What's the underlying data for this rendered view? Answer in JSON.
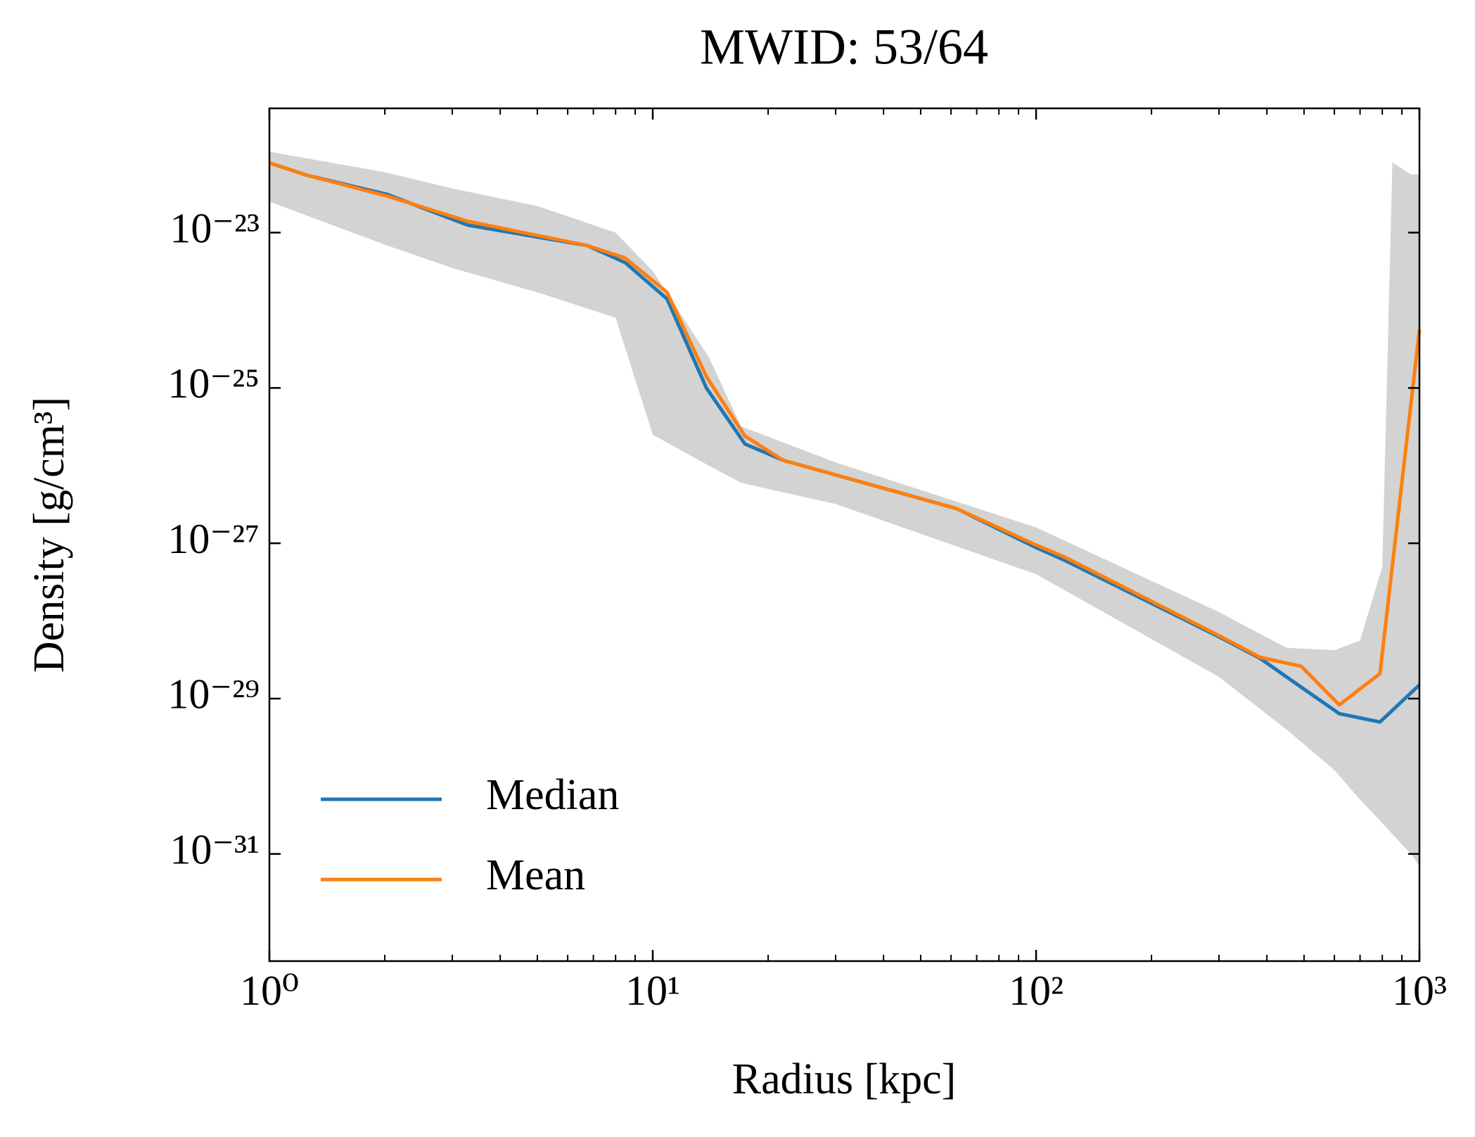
{
  "chart_data": {
    "type": "line",
    "title": "MWID: 53/64",
    "x_label": "Radius [kpc]",
    "y_label": "Density [g/cm³]",
    "log_x": true,
    "log_y": true,
    "xlim": [
      1,
      1000
    ],
    "ylim": [
      4.17e-33,
      3.98e-22
    ],
    "xticks": [
      {
        "value": 1,
        "label": "10⁰"
      },
      {
        "value": 10,
        "label": "10¹"
      },
      {
        "value": 100,
        "label": "10²"
      },
      {
        "value": 1000,
        "label": "10³"
      }
    ],
    "xminorticks": [
      2,
      3,
      4,
      5,
      6,
      7,
      8,
      9,
      20,
      30,
      40,
      50,
      60,
      70,
      80,
      90,
      200,
      300,
      400,
      500,
      600,
      700,
      800,
      900
    ],
    "yticks": [
      {
        "value": 1e-23,
        "label": "10⁻²³"
      },
      {
        "value": 1e-25,
        "label": "10⁻²⁵"
      },
      {
        "value": 1e-27,
        "label": "10⁻²⁷"
      },
      {
        "value": 1e-29,
        "label": "10⁻²⁹"
      },
      {
        "value": 1e-31,
        "label": "10⁻³¹"
      }
    ],
    "legend": "lower left",
    "band": {
      "color": "#d3d3d3",
      "x": [
        1,
        2,
        3,
        5,
        8,
        10,
        14,
        17,
        30,
        100,
        300,
        450,
        600,
        700,
        800,
        850,
        950,
        1000
      ],
      "high": [
        1.1e-22,
        6e-23,
        3.7e-23,
        2.2e-23,
        1e-23,
        3.2e-24,
        2.5e-25,
        3.2e-26,
        1.1e-26,
        1.6e-27,
        1.3e-28,
        4.5e-29,
        4.2e-29,
        5.6e-29,
        5e-28,
        8e-23,
        5.6e-23,
        5.6e-23
      ],
      "low": [
        2.5e-23,
        7e-24,
        3.5e-24,
        1.7e-24,
        8e-25,
        2.5e-26,
        1e-26,
        6e-27,
        3.2e-27,
        4e-28,
        1.9e-29,
        4e-30,
        1.2e-30,
        5e-31,
        2.5e-31,
        1.8e-31,
        1e-31,
        7e-32
      ]
    },
    "x": [
      1,
      1.25,
      2.03,
      3.29,
      6.76,
      8.48,
      10.9,
      13.8,
      17.4,
      21.9,
      62,
      100,
      119,
      305,
      384,
      492,
      618,
      789,
      1000
    ],
    "series": [
      {
        "name": "Median",
        "color": "#1f77b4",
        "values": [
          7.9e-23,
          5.5e-23,
          3.1e-23,
          1.25e-23,
          6.8e-24,
          4.1e-24,
          1.4e-24,
          1e-25,
          1.9e-26,
          1.17e-26,
          2.8e-27,
          8.8e-28,
          6e-28,
          6e-29,
          3.3e-29,
          1.4e-29,
          6.4e-30,
          5e-30,
          1.5e-29
        ]
      },
      {
        "name": "Mean",
        "color": "#ff7f0e",
        "values": [
          7.9e-23,
          5.5e-23,
          2.95e-23,
          1.4e-23,
          6.8e-24,
          4.7e-24,
          1.7e-24,
          1.4e-25,
          2.4e-26,
          1.17e-26,
          2.8e-27,
          9.5e-28,
          6.6e-28,
          6.2e-29,
          3.4e-29,
          2.6e-29,
          8.3e-30,
          2.1e-29,
          5.6e-25
        ]
      }
    ]
  }
}
